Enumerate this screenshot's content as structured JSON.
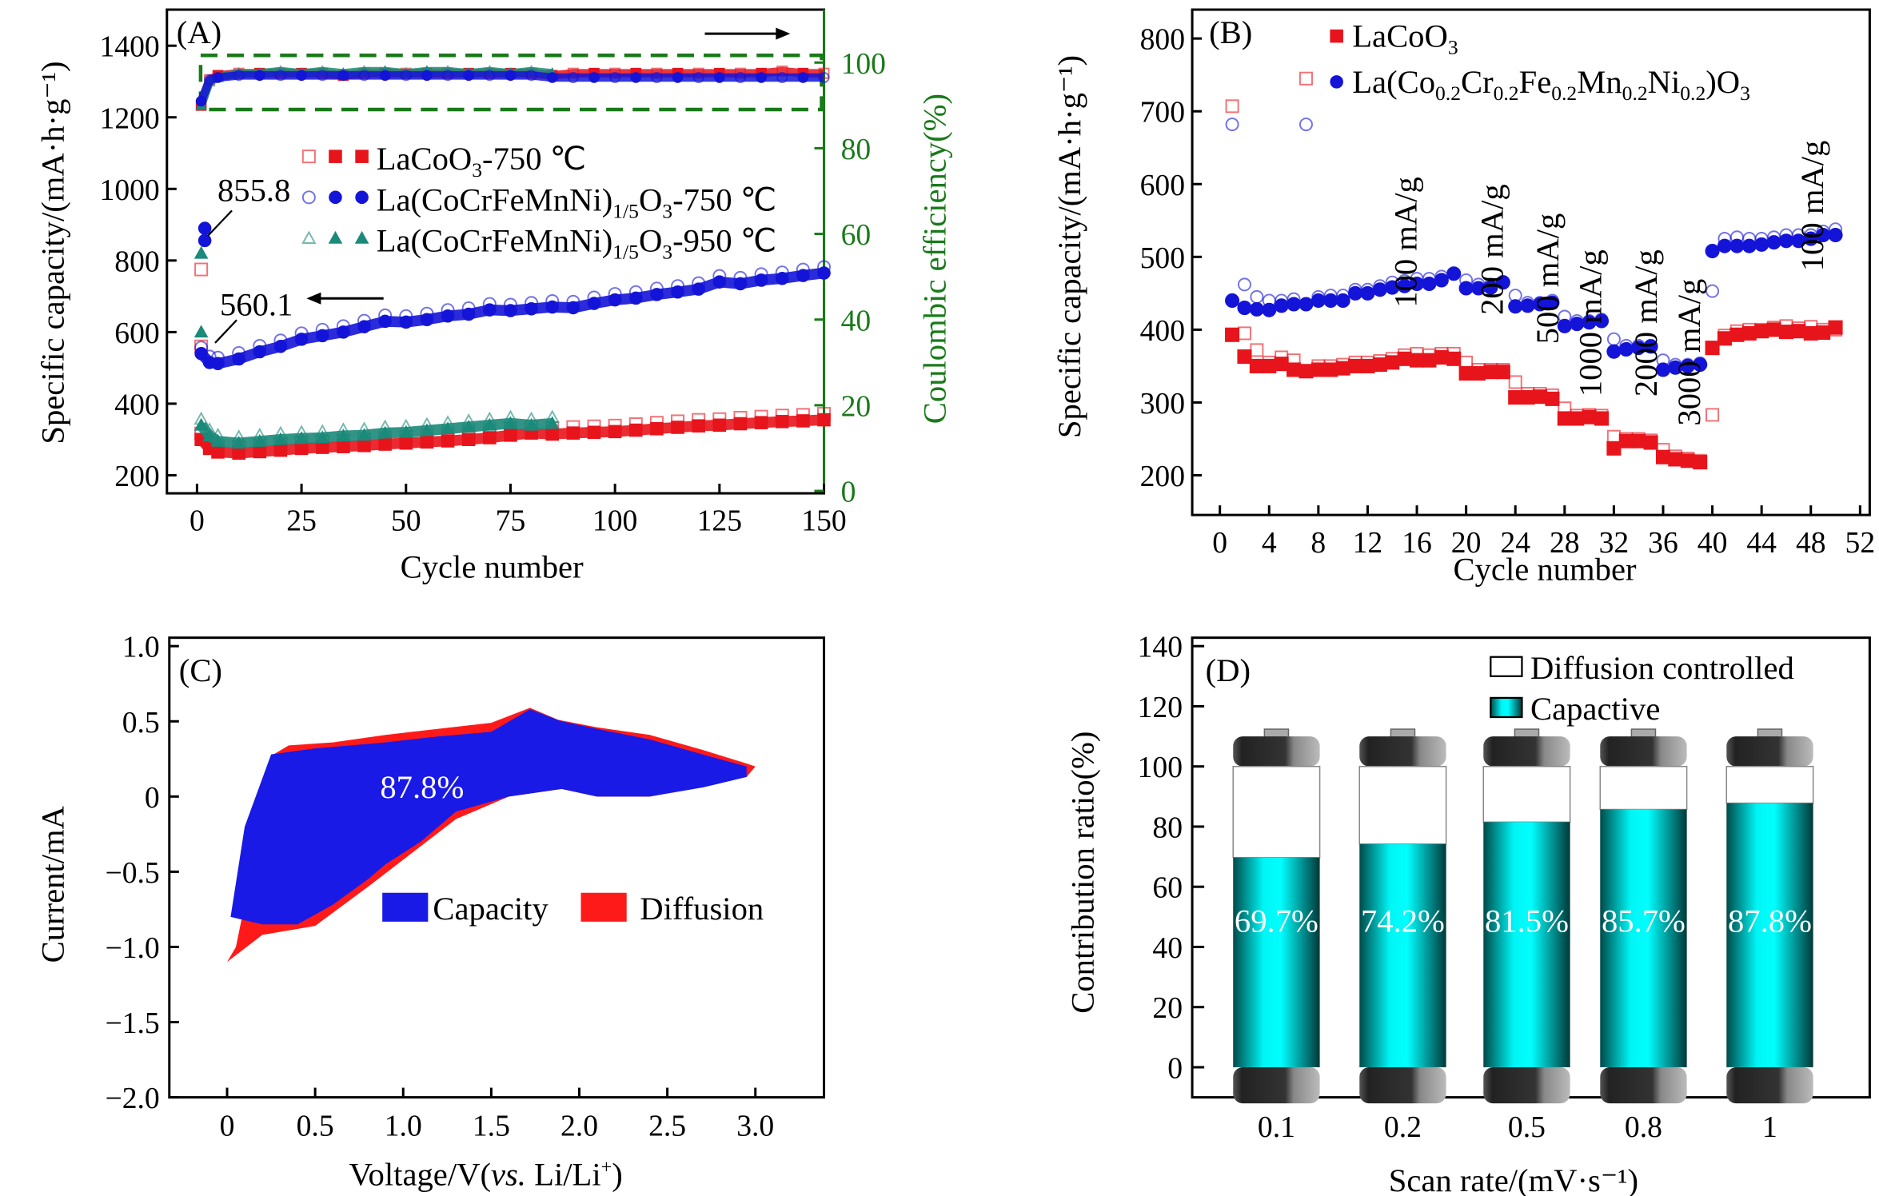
{
  "chart_data": [
    {
      "panel": "(A)",
      "type": "scatter",
      "xlabel": "Cycle number",
      "ylabel": "Specific capacity/(mA·h·g⁻¹)",
      "y2label": "Coulombic efficiency(%)",
      "xlim": [
        0,
        150
      ],
      "ylim": [
        150,
        1500
      ],
      "y2lim": [
        0,
        110
      ],
      "xticks": [
        0,
        25,
        50,
        75,
        100,
        125,
        150
      ],
      "yticks": [
        200,
        400,
        600,
        800,
        1000,
        1200,
        1400
      ],
      "y2ticks": [
        0,
        20,
        40,
        60,
        80,
        100
      ],
      "legend": [
        {
          "parts": [
            {
              "t": "LaCoO"
            },
            {
              "t": "3",
              "sub": true
            },
            {
              "t": "-750 ℃"
            }
          ],
          "color": "#e8141c",
          "marker": "square"
        },
        {
          "parts": [
            {
              "t": "La(CoCrFeMnNi)"
            },
            {
              "t": "1/5",
              "sub": true
            },
            {
              "t": "O"
            },
            {
              "t": "3",
              "sub": true
            },
            {
              "t": "-750 ℃"
            }
          ],
          "color": "#1414d8",
          "marker": "circle"
        },
        {
          "parts": [
            {
              "t": "La(CoCrFeMnNi)"
            },
            {
              "t": "1/5",
              "sub": true
            },
            {
              "t": "O"
            },
            {
              "t": "3",
              "sub": true
            },
            {
              "t": "-950 ℃"
            }
          ],
          "color": "#1a8a7a",
          "marker": "triangle"
        }
      ],
      "annotations": [
        "855.8",
        "560.1"
      ],
      "series": [
        {
          "x": [
            1,
            3,
            5,
            10,
            15,
            20,
            25,
            30,
            35,
            40,
            45,
            50,
            55,
            60,
            65,
            70,
            75,
            80,
            85,
            90,
            95,
            100,
            105,
            110,
            115,
            120,
            125,
            130,
            135,
            140,
            145,
            150
          ],
          "capacity": [
            300,
            275,
            265,
            262,
            266,
            270,
            275,
            278,
            280,
            283,
            287,
            290,
            293,
            296,
            300,
            305,
            312,
            318,
            315,
            318,
            320,
            322,
            326,
            330,
            334,
            338,
            340,
            344,
            347,
            350,
            352,
            355
          ],
          "first_discharge": [
            775,
            560
          ],
          "ce": [
            90,
            96,
            97,
            97.5,
            97.5,
            97.5,
            97.5,
            97.5,
            97,
            97.5,
            97.5,
            97.5,
            97.5,
            97.5,
            97.5,
            97.5,
            97.5,
            97.5,
            97,
            97.5,
            97.5,
            97.5,
            97.5,
            97.5,
            97.5,
            97.5,
            97.5,
            97.5,
            97.5,
            98,
            97.5,
            97.5
          ]
        },
        {
          "x": [
            1,
            3,
            5,
            10,
            15,
            20,
            25,
            30,
            35,
            40,
            45,
            50,
            55,
            60,
            65,
            70,
            75,
            80,
            85,
            90,
            95,
            100,
            105,
            110,
            115,
            120,
            125,
            130,
            135,
            140,
            145,
            150
          ],
          "capacity": [
            540,
            515,
            512,
            525,
            545,
            560,
            580,
            590,
            600,
            615,
            630,
            628,
            635,
            645,
            650,
            662,
            660,
            665,
            670,
            668,
            680,
            690,
            695,
            705,
            712,
            720,
            740,
            735,
            745,
            750,
            758,
            765
          ],
          "first_discharge": [
            890,
            855.8
          ],
          "ce": [
            91,
            96,
            96.5,
            97,
            97,
            97,
            97,
            97,
            97,
            97,
            97,
            97,
            97,
            97,
            97,
            97,
            97,
            97,
            96.5,
            96.5,
            96.5,
            96.5,
            96.5,
            96.5,
            96.5,
            96.5,
            96.5,
            96.5,
            96.5,
            96.5,
            96.5,
            96.5
          ]
        },
        {
          "x": [
            1,
            3,
            5,
            10,
            15,
            20,
            25,
            30,
            35,
            40,
            45,
            50,
            55,
            60,
            65,
            70,
            75,
            80,
            85
          ],
          "capacity": [
            340,
            310,
            295,
            290,
            295,
            300,
            303,
            305,
            310,
            312,
            318,
            320,
            325,
            330,
            335,
            340,
            345,
            340,
            345
          ],
          "first_discharge": [
            820,
            600
          ],
          "ce": [
            90,
            95.5,
            96.5,
            97.5,
            97.5,
            98,
            97.5,
            98,
            97.5,
            98,
            98,
            97.5,
            98,
            98,
            97.5,
            98,
            97.5,
            98,
            97.5
          ]
        }
      ]
    },
    {
      "panel": "(B)",
      "type": "scatter",
      "xlabel": "Cycle number",
      "ylabel": "Specific capacity/(mA·h·g⁻¹)",
      "xlim": [
        -2,
        52
      ],
      "ylim": [
        180,
        840
      ],
      "xticks": [
        0,
        4,
        8,
        12,
        16,
        20,
        24,
        28,
        32,
        36,
        40,
        44,
        48,
        52
      ],
      "yticks": [
        200,
        300,
        400,
        500,
        600,
        700,
        800
      ],
      "rate_labels": [
        {
          "text": "100 mA/g",
          "cycle": 15,
          "cap": 610
        },
        {
          "text": "200 mA/g",
          "cycle": 22,
          "cap": 600
        },
        {
          "text": "500 mA/g",
          "cycle": 26.5,
          "cap": 560
        },
        {
          "text": "1000 mA/g",
          "cycle": 30,
          "cap": 510
        },
        {
          "text": "2000 mA/g",
          "cycle": 34.5,
          "cap": 510
        },
        {
          "text": "3000 mA/g",
          "cycle": 38,
          "cap": 470
        },
        {
          "text": "100 mA/g",
          "cycle": 48,
          "cap": 660
        }
      ],
      "series": [
        {
          "legend": [
            {
              "t": "LaCoO"
            },
            {
              "t": "3",
              "sub": true
            }
          ],
          "color": "#e8141c",
          "marker": "square",
          "charge": [
            393,
            363,
            350,
            350,
            353,
            345,
            343,
            345,
            345,
            347,
            350,
            350,
            352,
            355,
            360,
            358,
            358,
            362,
            360,
            340,
            340,
            342,
            342,
            307,
            307,
            308,
            305,
            278,
            278,
            280,
            278,
            237,
            247,
            247,
            245,
            225,
            222,
            220,
            218,
            375,
            388,
            393,
            395,
            398,
            400,
            397,
            398,
            395,
            396,
            403
          ],
          "discharge": [
            707,
            395,
            372,
            355,
            362,
            358,
            745,
            350,
            350,
            352,
            355,
            355,
            357,
            360,
            365,
            367,
            365,
            367,
            367,
            355,
            345,
            345,
            345,
            328,
            312,
            312,
            310,
            292,
            282,
            283,
            282,
            253,
            250,
            250,
            248,
            235,
            226,
            223,
            220,
            283,
            392,
            398,
            400,
            400,
            403,
            405,
            402,
            404,
            400,
            400
          ]
        },
        {
          "legend": [
            {
              "t": "La(Co"
            },
            {
              "t": "0.2",
              "sub": true
            },
            {
              "t": "Cr"
            },
            {
              "t": "0.2",
              "sub": true
            },
            {
              "t": "Fe"
            },
            {
              "t": "0.2",
              "sub": true
            },
            {
              "t": "Mn"
            },
            {
              "t": "0.2",
              "sub": true
            },
            {
              "t": "Ni"
            },
            {
              "t": "0.2",
              "sub": true
            },
            {
              "t": ")O"
            },
            {
              "t": "3",
              "sub": true
            }
          ],
          "color": "#1414d8",
          "marker": "circle",
          "charge": [
            440,
            430,
            428,
            427,
            433,
            435,
            435,
            440,
            440,
            440,
            450,
            450,
            455,
            458,
            460,
            463,
            463,
            468,
            477,
            457,
            457,
            458,
            465,
            432,
            433,
            435,
            437,
            405,
            408,
            410,
            412,
            370,
            373,
            375,
            377,
            345,
            348,
            350,
            352,
            508,
            515,
            515,
            515,
            517,
            520,
            522,
            522,
            525,
            530,
            530
          ],
          "discharge": [
            682,
            462,
            445,
            440,
            440,
            442,
            682,
            445,
            447,
            447,
            455,
            455,
            460,
            465,
            467,
            470,
            470,
            473,
            477,
            468,
            462,
            462,
            465,
            447,
            437,
            437,
            440,
            418,
            412,
            412,
            414,
            387,
            378,
            378,
            378,
            358,
            352,
            352,
            354,
            453,
            525,
            527,
            525,
            525,
            527,
            530,
            530,
            530,
            535,
            538
          ]
        }
      ]
    },
    {
      "panel": "(C)",
      "type": "area",
      "xlabel_parts": [
        {
          "t": "Voltage/V("
        },
        {
          "t": "vs.",
          "it": true
        },
        {
          "t": " Li/Li"
        },
        {
          "t": "+",
          "sup": true
        },
        {
          "t": ")"
        }
      ],
      "ylabel": "Current/mA",
      "xlim": [
        -0.33,
        3.4
      ],
      "ylim": [
        -2.0,
        1.05
      ],
      "xticks": [
        "0",
        "0.5",
        "1.0",
        "1.5",
        "2.0",
        "2.5",
        "3.0"
      ],
      "yticks": [
        "1.0",
        "0.5",
        "0",
        "−0.5",
        "−1.0",
        "−1.5",
        "−2.0"
      ],
      "annotation": "87.8%",
      "series": [
        {
          "name": "Diffusion",
          "color": "#ff1a1a",
          "points": [
            [
              0,
              -1.1
            ],
            [
              0.05,
              -1.0
            ],
            [
              0.12,
              -0.6
            ],
            [
              0.18,
              -0.1
            ],
            [
              0.25,
              0.27
            ],
            [
              0.35,
              0.34
            ],
            [
              0.6,
              0.36
            ],
            [
              0.9,
              0.41
            ],
            [
              1.2,
              0.45
            ],
            [
              1.5,
              0.49
            ],
            [
              1.72,
              0.59
            ],
            [
              1.88,
              0.51
            ],
            [
              2.1,
              0.46
            ],
            [
              2.4,
              0.41
            ],
            [
              2.7,
              0.31
            ],
            [
              2.95,
              0.22
            ],
            [
              3.0,
              0.2
            ],
            [
              2.95,
              0.13
            ],
            [
              2.7,
              0.07
            ],
            [
              2.4,
              0.0
            ],
            [
              2.1,
              0.0
            ],
            [
              1.9,
              0.05
            ],
            [
              1.6,
              0.0
            ],
            [
              1.3,
              -0.15
            ],
            [
              1.0,
              -0.42
            ],
            [
              0.8,
              -0.6
            ],
            [
              0.5,
              -0.86
            ],
            [
              0.2,
              -0.92
            ],
            [
              0.0,
              -1.1
            ]
          ]
        },
        {
          "name": "Capacity",
          "color": "#1a1ae6",
          "points": [
            [
              0.02,
              -0.8
            ],
            [
              0.1,
              -0.2
            ],
            [
              0.25,
              0.28
            ],
            [
              0.5,
              0.32
            ],
            [
              0.9,
              0.36
            ],
            [
              1.2,
              0.4
            ],
            [
              1.5,
              0.43
            ],
            [
              1.72,
              0.58
            ],
            [
              1.9,
              0.5
            ],
            [
              2.1,
              0.45
            ],
            [
              2.4,
              0.38
            ],
            [
              2.7,
              0.28
            ],
            [
              2.95,
              0.2
            ],
            [
              2.95,
              0.13
            ],
            [
              2.7,
              0.06
            ],
            [
              2.4,
              0.0
            ],
            [
              2.1,
              0.0
            ],
            [
              1.9,
              0.05
            ],
            [
              1.6,
              0.0
            ],
            [
              1.3,
              -0.1
            ],
            [
              1.1,
              -0.3
            ],
            [
              0.9,
              -0.45
            ],
            [
              0.8,
              -0.55
            ],
            [
              0.6,
              -0.72
            ],
            [
              0.4,
              -0.85
            ],
            [
              0.2,
              -0.85
            ],
            [
              0.02,
              -0.8
            ]
          ]
        }
      ]
    },
    {
      "panel": "(D)",
      "type": "bar",
      "xlabel": "Scan rate/(mV·s⁻¹)",
      "ylabel": "Contribution ratio(%)",
      "ylim": [
        -10,
        140
      ],
      "yticks": [
        0,
        20,
        40,
        60,
        80,
        100,
        120,
        140
      ],
      "categories": [
        "0.1",
        "0.2",
        "0.5",
        "0.8",
        "1"
      ],
      "series": [
        {
          "name": "Capactive",
          "color": "#00f0f0",
          "values": [
            69.7,
            74.2,
            81.5,
            85.7,
            87.8
          ]
        },
        {
          "name": "Diffusion controlled",
          "color": "#ffffff",
          "values": [
            30.3,
            25.8,
            18.5,
            14.3,
            12.2
          ]
        }
      ],
      "labels": [
        "69.7%",
        "74.2%",
        "81.5%",
        "85.7%",
        "87.8%"
      ]
    }
  ]
}
